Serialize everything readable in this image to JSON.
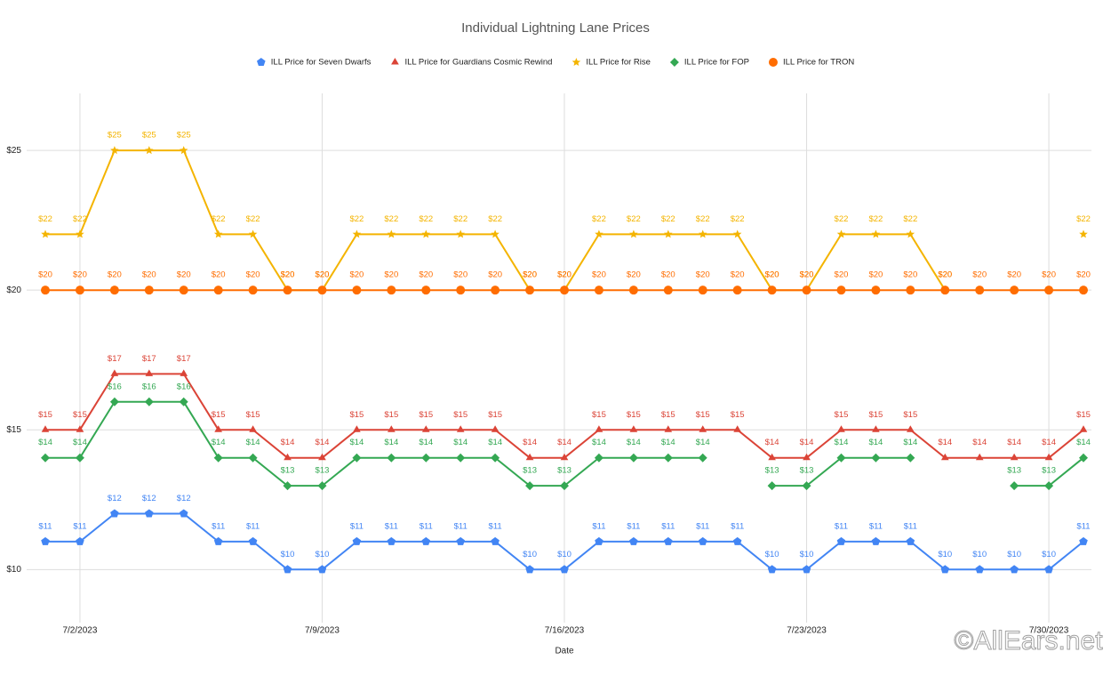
{
  "chart_data": {
    "type": "line",
    "title": "Individual Lightning Lane Prices",
    "x_label": "Date",
    "watermark": "©AllEars.net",
    "legend": "top",
    "grid": true,
    "x": [
      "2023-07-01",
      "2023-07-02",
      "2023-07-03",
      "2023-07-04",
      "2023-07-05",
      "2023-07-06",
      "2023-07-07",
      "2023-07-08",
      "2023-07-09",
      "2023-07-10",
      "2023-07-11",
      "2023-07-12",
      "2023-07-13",
      "2023-07-14",
      "2023-07-15",
      "2023-07-16",
      "2023-07-17",
      "2023-07-18",
      "2023-07-19",
      "2023-07-20",
      "2023-07-21",
      "2023-07-22",
      "2023-07-23",
      "2023-07-24",
      "2023-07-25",
      "2023-07-26",
      "2023-07-27",
      "2023-07-28",
      "2023-07-29",
      "2023-07-30",
      "2023-07-31"
    ],
    "xlim": [
      "2023-07-01",
      "2023-07-31"
    ],
    "xticks": [
      {
        "value": "2023-07-02",
        "label": "7/2/2023"
      },
      {
        "value": "2023-07-09",
        "label": "7/9/2023"
      },
      {
        "value": "2023-07-16",
        "label": "7/16/2023"
      },
      {
        "value": "2023-07-23",
        "label": "7/23/2023"
      },
      {
        "value": "2023-07-30",
        "label": "7/30/2023"
      }
    ],
    "ylim": [
      8.1,
      27.2
    ],
    "yticks": [
      {
        "value": 10,
        "label": "$10"
      },
      {
        "value": 15,
        "label": "$15"
      },
      {
        "value": 20,
        "label": "$20"
      },
      {
        "value": 25,
        "label": "$25"
      }
    ],
    "series": [
      {
        "name": "ILL Price for Seven Dwarfs",
        "color": "#4285f4",
        "marker": "pentagon",
        "values": [
          11,
          11,
          12,
          12,
          12,
          11,
          11,
          10,
          10,
          11,
          11,
          11,
          11,
          11,
          10,
          10,
          11,
          11,
          11,
          11,
          11,
          10,
          10,
          11,
          11,
          11,
          10,
          10,
          10,
          10,
          11
        ],
        "value_labels": [
          "$11",
          "$11",
          "$12",
          "$12",
          "$12",
          "$11",
          "$11",
          "$10",
          "$10",
          "$11",
          "$11",
          "$11",
          "$11",
          "$11",
          "$10",
          "$10",
          "$11",
          "$11",
          "$11",
          "$11",
          "$11",
          "$10",
          "$10",
          "$11",
          "$11",
          "$11",
          "$10",
          "$10",
          "$10",
          "$10",
          "$11"
        ]
      },
      {
        "name": "ILL Price for Guardians Cosmic Rewind",
        "color": "#db4437",
        "marker": "triangle",
        "values": [
          15,
          15,
          17,
          17,
          17,
          15,
          15,
          14,
          14,
          15,
          15,
          15,
          15,
          15,
          14,
          14,
          15,
          15,
          15,
          15,
          15,
          14,
          14,
          15,
          15,
          15,
          14,
          14,
          14,
          14,
          15
        ],
        "value_labels": [
          "$15",
          "$15",
          "$17",
          "$17",
          "$17",
          "$15",
          "$15",
          "$14",
          "$14",
          "$15",
          "$15",
          "$15",
          "$15",
          "$15",
          "$14",
          "$14",
          "$15",
          "$15",
          "$15",
          "$15",
          "$15",
          "$14",
          "$14",
          "$15",
          "$15",
          "$15",
          "$14",
          "$14",
          "$14",
          "$14",
          "$15"
        ]
      },
      {
        "name": "ILL Price for Rise",
        "color": "#f4b400",
        "marker": "star",
        "values": [
          22,
          22,
          25,
          25,
          25,
          22,
          22,
          20,
          20,
          22,
          22,
          22,
          22,
          22,
          20,
          20,
          22,
          22,
          22,
          22,
          22,
          20,
          20,
          22,
          22,
          22,
          20,
          null,
          null,
          null,
          22
        ],
        "value_labels": [
          "$22",
          "$22",
          "$25",
          "$25",
          "$25",
          "$22",
          "$22",
          "$20",
          "$20",
          "$22",
          "$22",
          "$22",
          "$22",
          "$22",
          "$20",
          "$20",
          "$22",
          "$22",
          "$22",
          "$22",
          "$22",
          "$20",
          "$20",
          "$22",
          "$22",
          "$22",
          "$20",
          null,
          null,
          null,
          "$22"
        ]
      },
      {
        "name": "ILL Price for FOP",
        "color": "#34a853",
        "marker": "diamond",
        "values": [
          14,
          14,
          16,
          16,
          16,
          14,
          14,
          13,
          13,
          14,
          14,
          14,
          14,
          14,
          13,
          13,
          14,
          14,
          14,
          14,
          null,
          13,
          13,
          14,
          14,
          14,
          null,
          null,
          13,
          13,
          14
        ],
        "value_labels": [
          "$14",
          "$14",
          "$16",
          "$16",
          "$16",
          "$14",
          "$14",
          "$13",
          "$13",
          "$14",
          "$14",
          "$14",
          "$14",
          "$14",
          "$13",
          "$13",
          "$14",
          "$14",
          "$14",
          "$14",
          null,
          "$13",
          "$13",
          "$14",
          "$14",
          "$14",
          null,
          null,
          "$13",
          "$13",
          "$14"
        ]
      },
      {
        "name": "ILL Price for TRON",
        "color": "#ff6d01",
        "marker": "circle",
        "values": [
          20,
          20,
          20,
          20,
          20,
          20,
          20,
          20,
          20,
          20,
          20,
          20,
          20,
          20,
          20,
          20,
          20,
          20,
          20,
          20,
          20,
          20,
          20,
          20,
          20,
          20,
          20,
          20,
          20,
          20,
          20
        ],
        "value_labels": [
          "$20",
          "$20",
          "$20",
          "$20",
          "$20",
          "$20",
          "$20",
          "$20",
          "$20",
          "$20",
          "$20",
          "$20",
          "$20",
          "$20",
          "$20",
          "$20",
          "$20",
          "$20",
          "$20",
          "$20",
          "$20",
          "$20",
          "$20",
          "$20",
          "$20",
          "$20",
          "$20",
          "$20",
          "$20",
          "$20",
          "$20"
        ]
      }
    ]
  }
}
